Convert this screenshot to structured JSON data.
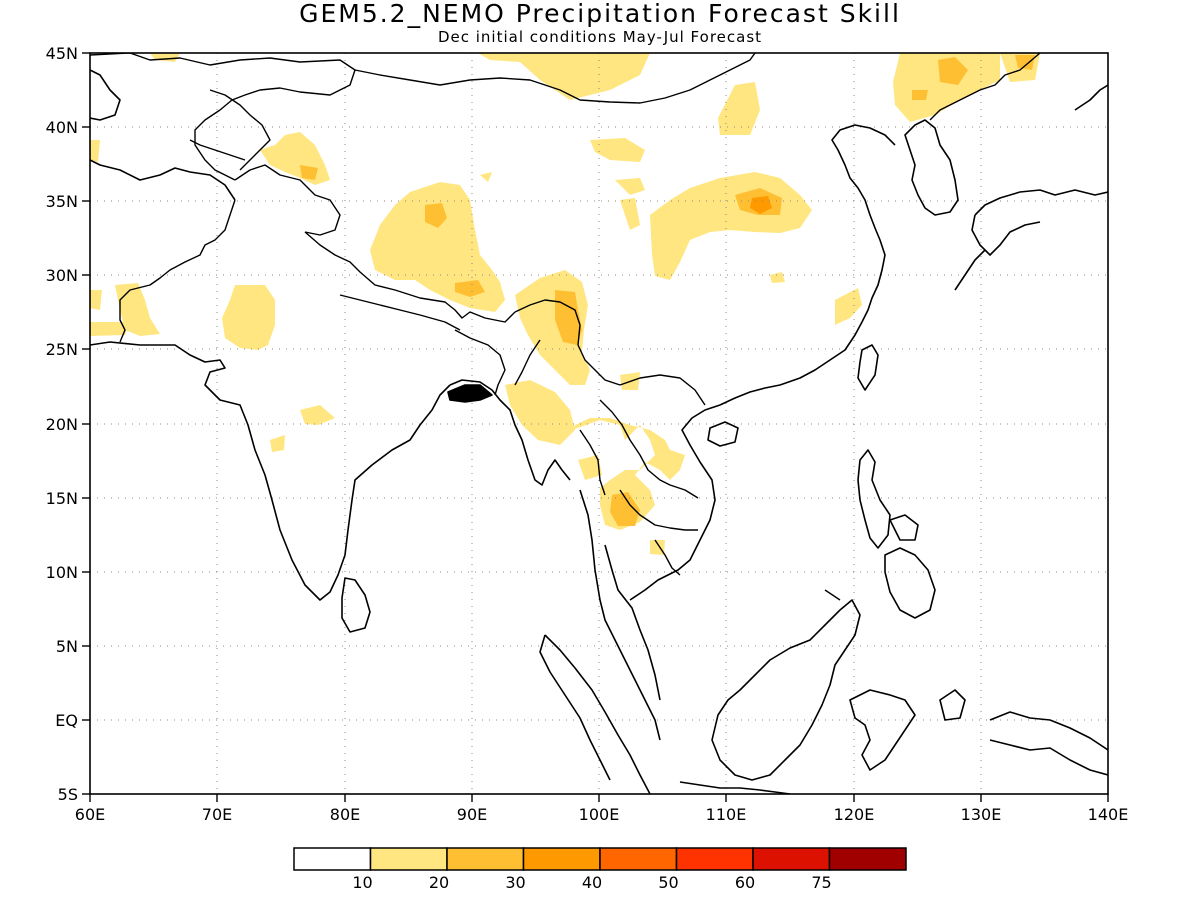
{
  "title": "GEM5.2_NEMO Precipitation Forecast Skill",
  "subtitle": "Dec initial conditions  May-Jul Forecast",
  "axes": {
    "lon_ticks": [
      "60E",
      "70E",
      "80E",
      "90E",
      "100E",
      "110E",
      "120E",
      "130E",
      "140E"
    ],
    "lat_ticks": [
      "45N",
      "40N",
      "35N",
      "30N",
      "25N",
      "20N",
      "15N",
      "10N",
      "5N",
      "EQ",
      "5S"
    ],
    "lon_range": [
      60,
      140
    ],
    "lat_range": [
      -5,
      45
    ],
    "grid": "dotted"
  },
  "colorbar": {
    "labels": [
      "10",
      "20",
      "30",
      "40",
      "50",
      "60",
      "75"
    ],
    "colors": [
      "#ffffff",
      "#ffe680",
      "#ffbf33",
      "#ff9900",
      "#ff6600",
      "#ff3300",
      "#dd1100",
      "#a00000"
    ]
  },
  "colors": {
    "skill_10_20": "#ffe680",
    "skill_20_30": "#ffbf33",
    "coastline": "#000000"
  }
}
